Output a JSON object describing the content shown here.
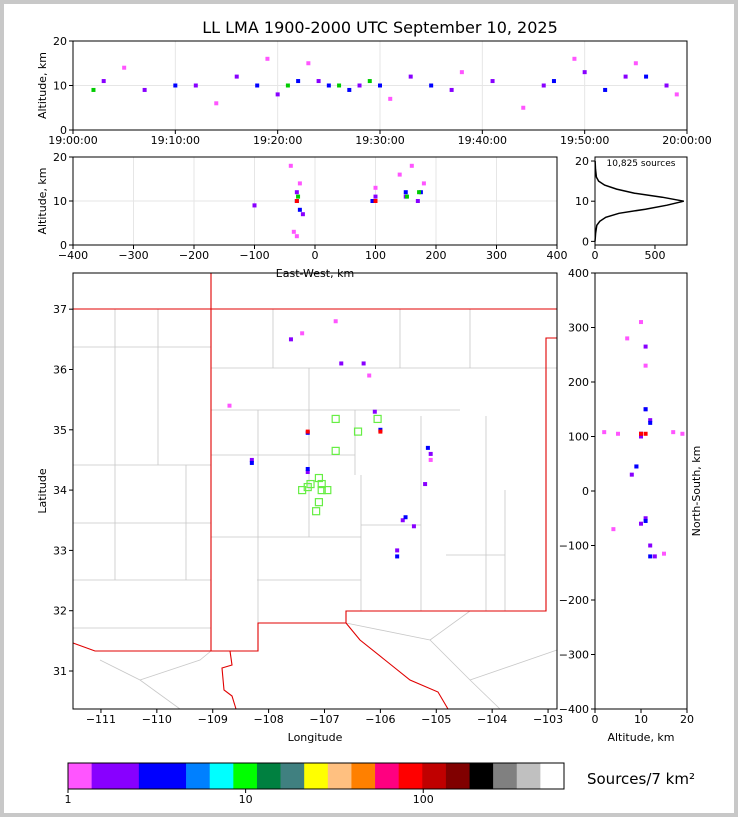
{
  "chart_data": [
    {
      "type": "scatter",
      "title": "LL LMA 1900-2000 UTC September 10, 2025",
      "ylabel": "Altitude, km",
      "grid": true,
      "xlim": [
        0,
        60
      ],
      "xticks": [
        {
          "value": 0,
          "label": "19:00:00"
        },
        {
          "value": 10,
          "label": "19:10:00"
        },
        {
          "value": 20,
          "label": "19:20:00"
        },
        {
          "value": 30,
          "label": "19:30:00"
        },
        {
          "value": 40,
          "label": "19:40:00"
        },
        {
          "value": 50,
          "label": "19:50:00"
        },
        {
          "value": 60,
          "label": "20:00:00"
        }
      ],
      "ylim": [
        0,
        20
      ],
      "yticks": [
        0,
        10,
        20
      ],
      "series": [
        {
          "color": "#ff55ff",
          "x": [
            5,
            14,
            19,
            23,
            31,
            38,
            44,
            49,
            55,
            59
          ],
          "y": [
            14,
            6,
            16,
            15,
            7,
            13,
            5,
            16,
            15,
            8
          ]
        },
        {
          "color": "#8800ff",
          "x": [
            3,
            7,
            12,
            16,
            20,
            24,
            28,
            33,
            37,
            41,
            46,
            50,
            54,
            58
          ],
          "y": [
            11,
            9,
            10,
            12,
            8,
            11,
            10,
            12,
            9,
            11,
            10,
            13,
            12,
            10
          ]
        },
        {
          "color": "#0000ff",
          "x": [
            10,
            18,
            22,
            25,
            27,
            30,
            35,
            47,
            52,
            56
          ],
          "y": [
            10,
            10,
            11,
            10,
            9,
            10,
            10,
            11,
            9,
            12
          ]
        },
        {
          "color": "#00cc00",
          "x": [
            2,
            21,
            26,
            29
          ],
          "y": [
            9,
            10,
            10,
            11
          ]
        }
      ]
    },
    {
      "type": "scatter",
      "xlabel": "East-West, km",
      "ylabel": "Altitude, km",
      "grid": true,
      "xlim": [
        -400,
        400
      ],
      "xticks": [
        {
          "value": -400,
          "label": "−400"
        },
        {
          "value": -300,
          "label": "−300"
        },
        {
          "value": -200,
          "label": "−200"
        },
        {
          "value": -100,
          "label": "−100"
        },
        0,
        100,
        200,
        300,
        400
      ],
      "ylim": [
        0,
        20
      ],
      "yticks": [
        0,
        10,
        20
      ],
      "series": [
        {
          "color": "#ff55ff",
          "x": [
            -100,
            -40,
            -25,
            -35,
            100,
            140,
            160,
            180,
            -30
          ],
          "y": [
            9,
            18,
            14,
            3,
            13,
            16,
            18,
            14,
            2
          ]
        },
        {
          "color": "#8800ff",
          "x": [
            -100,
            -30,
            -20,
            100,
            150,
            170
          ],
          "y": [
            9,
            12,
            7,
            11,
            11,
            10
          ]
        },
        {
          "color": "#0000ff",
          "x": [
            -30,
            -25,
            95,
            150,
            175
          ],
          "y": [
            10,
            8,
            10,
            12,
            12
          ]
        },
        {
          "color": "#00cc00",
          "x": [
            -28,
            152,
            172
          ],
          "y": [
            11,
            11,
            12
          ]
        },
        {
          "color": "#ff0000",
          "x": [
            -30,
            100
          ],
          "y": [
            10,
            10
          ]
        }
      ]
    },
    {
      "type": "line",
      "annotation": "10,825 sources",
      "color": "#000000",
      "xlim": [
        0,
        767
      ],
      "xticks": [
        0,
        500
      ],
      "ylim": [
        -0.9,
        21
      ],
      "yticks": [
        0,
        10,
        20
      ],
      "x": [
        0,
        5,
        15,
        40,
        90,
        200,
        420,
        600,
        740,
        560,
        330,
        180,
        80,
        30,
        12,
        4,
        1
      ],
      "y": [
        0,
        2,
        4,
        5,
        6,
        7,
        8,
        9,
        10,
        11,
        12,
        13,
        14,
        15,
        16,
        18,
        20
      ]
    },
    {
      "type": "scatter",
      "xlabel": "Longitude",
      "ylabel": "Latitude",
      "xlim": [
        -111.5,
        -102.84
      ],
      "xticks": [
        {
          "value": -111,
          "label": "−111"
        },
        {
          "value": -110,
          "label": "−110"
        },
        {
          "value": -109,
          "label": "−109"
        },
        {
          "value": -108,
          "label": "−108"
        },
        {
          "value": -107,
          "label": "−107"
        },
        {
          "value": -106,
          "label": "−106"
        },
        {
          "value": -105,
          "label": "−105"
        },
        {
          "value": -104,
          "label": "−104"
        },
        {
          "value": -103,
          "label": "−103"
        }
      ],
      "ylim": [
        30.37,
        37.6
      ],
      "yticks": [
        31,
        32,
        33,
        34,
        35,
        36,
        37
      ],
      "series": [
        {
          "color": "#ff55ff",
          "x": [
            -107.4,
            -106.2,
            -105.1,
            -108.7,
            -106.8
          ],
          "y": [
            36.6,
            35.9,
            34.5,
            35.4,
            36.8
          ]
        },
        {
          "color": "#8800ff",
          "x": [
            -107.6,
            -106.7,
            -106.1,
            -105.1,
            -105.2,
            -105.6,
            -105.4,
            -108.3,
            -107.3,
            -106.3,
            -105.7
          ],
          "y": [
            36.5,
            36.1,
            35.3,
            34.6,
            34.1,
            33.5,
            33.4,
            34.5,
            34.3,
            36.1,
            33.0
          ]
        },
        {
          "color": "#0000ff",
          "x": [
            -107.3,
            -106,
            -105.15,
            -105.55,
            -108.3,
            -107.3,
            -105.7
          ],
          "y": [
            34.95,
            35.0,
            34.7,
            33.55,
            34.45,
            34.35,
            32.9
          ]
        },
        {
          "color": "#ff0000",
          "x": [
            -107.3,
            -106
          ],
          "y": [
            34.97,
            34.97
          ]
        },
        {
          "color": "#66ee44",
          "marker": "square-open",
          "x": [
            -106.8,
            -106.4,
            -106.05,
            -106.8,
            -107.25,
            -107.1,
            -107.05,
            -107.1,
            -107.15,
            -107.4,
            -106.95,
            -107.3,
            -107.05
          ],
          "y": [
            35.18,
            34.97,
            35.18,
            34.65,
            34.1,
            34.2,
            34.0,
            33.8,
            33.65,
            34.0,
            34.0,
            34.05,
            34.1
          ]
        }
      ]
    },
    {
      "type": "scatter",
      "xlabel": "Altitude, km",
      "ylabel": "North-South, km",
      "xlim": [
        0,
        20
      ],
      "xticks": [
        0,
        10,
        20
      ],
      "ylim": [
        -400,
        400
      ],
      "yticks": [
        {
          "value": -400,
          "label": "−400"
        },
        {
          "value": -300,
          "label": "−300"
        },
        {
          "value": -200,
          "label": "−200"
        },
        {
          "value": -100,
          "label": "−100"
        },
        0,
        100,
        200,
        300,
        400
      ],
      "series": [
        {
          "color": "#ff55ff",
          "x": [
            2,
            5,
            17,
            19,
            7,
            15,
            10,
            11,
            4
          ],
          "y": [
            108,
            105,
            108,
            105,
            280,
            -115,
            310,
            230,
            -70
          ]
        },
        {
          "color": "#8800ff",
          "x": [
            10,
            11,
            12,
            9,
            8,
            11,
            10,
            12,
            13,
            11
          ],
          "y": [
            100,
            150,
            130,
            45,
            30,
            -50,
            -60,
            -100,
            -120,
            265
          ]
        },
        {
          "color": "#0000ff",
          "x": [
            10,
            11,
            12,
            9,
            11,
            12
          ],
          "y": [
            105,
            150,
            125,
            45,
            -55,
            -120
          ]
        },
        {
          "color": "#ff0000",
          "x": [
            10,
            11
          ],
          "y": [
            105,
            105
          ]
        }
      ]
    },
    {
      "type": "colorbar",
      "label": "Sources/7 km²",
      "xscale": "log",
      "xlim": [
        1,
        620
      ],
      "xticks": [
        1,
        10,
        100
      ],
      "colors": [
        "#ff55ff",
        "#8800ff",
        "#8800ff",
        "#0000ff",
        "#0000ff",
        "#0080ff",
        "#00ffff",
        "#00ff00",
        "#008040",
        "#408080",
        "#ffff00",
        "#ffc080",
        "#ff8000",
        "#ff0080",
        "#ff0000",
        "#c00000",
        "#800000",
        "#000000",
        "#808080",
        "#c0c0c0",
        "#ffffff"
      ]
    }
  ]
}
